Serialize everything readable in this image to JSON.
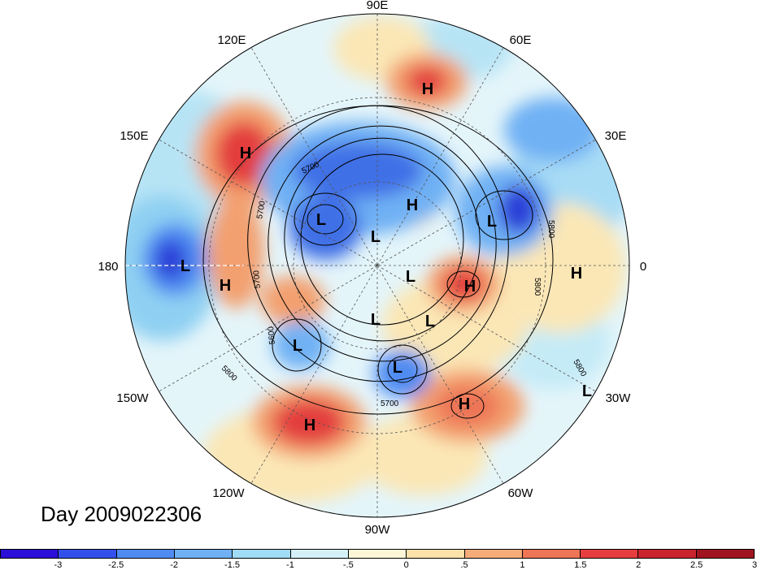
{
  "title": "Day 2009022306",
  "longitude_labels": [
    "90E",
    "60E",
    "30E",
    "0",
    "30W",
    "60W",
    "90W",
    "120W",
    "150W",
    "180",
    "150E",
    "120E"
  ],
  "contour_labels": [
    "5700",
    "5700",
    "5700",
    "5600",
    "5800",
    "5800",
    "5800",
    "5700",
    "5800"
  ],
  "pressure_centers": [
    "H",
    "H",
    "H",
    "H",
    "H",
    "H",
    "H",
    "H",
    "L",
    "L",
    "L",
    "L",
    "L",
    "L",
    "L",
    "L",
    "L",
    "L"
  ],
  "colorbar": {
    "colors": [
      "#2b0fd8",
      "#3350ec",
      "#4f8cf2",
      "#6fb1f4",
      "#a0dcf6",
      "#d5f1f8",
      "#fdf7d8",
      "#fbe1aa",
      "#f6ab78",
      "#ee7556",
      "#e63e3e",
      "#c9232d",
      "#a0141f"
    ],
    "ticks": [
      "-3",
      "-2.5",
      "-2",
      "-1.5",
      "-1",
      "-.5",
      "0",
      ".5",
      "1",
      "1.5",
      "2",
      "2.5",
      "3"
    ]
  },
  "anomaly_colors": {
    "deep_blue": "#2b3fd8",
    "mid_blue": "#4f8cf2",
    "light_blue": "#a0dcf6",
    "pale_blue": "#d5f1f8",
    "pale_yellow": "#fbe7b6",
    "orange": "#f3a070",
    "red": "#e33e3e",
    "base": "#dff3f8"
  }
}
